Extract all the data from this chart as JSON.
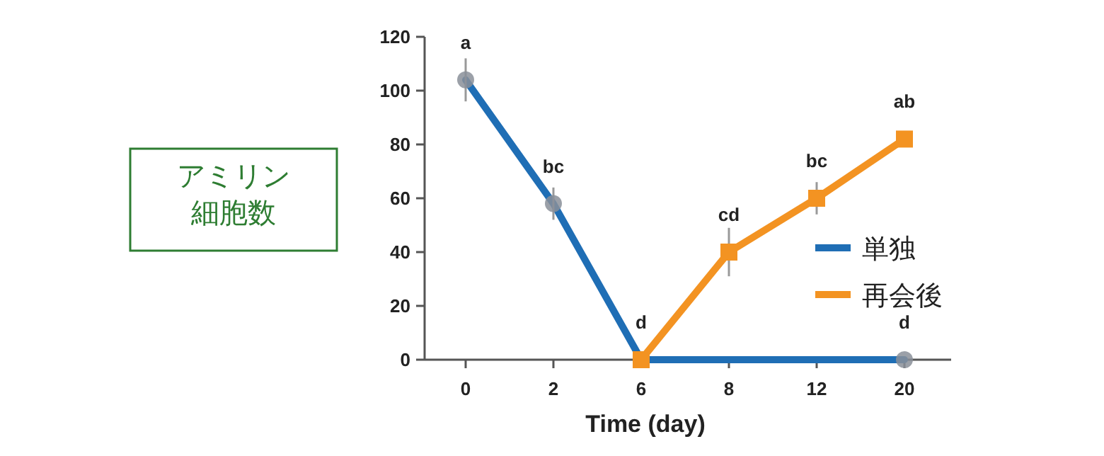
{
  "chart_data": {
    "type": "line",
    "xlabel": "Time (day)",
    "ylabel": "アミリン細胞数",
    "categories": [
      "0",
      "2",
      "6",
      "8",
      "12",
      "20"
    ],
    "series": [
      {
        "name": "単独",
        "color": "#1f6eb5",
        "values": [
          104,
          58,
          0,
          null,
          null,
          0
        ],
        "errors": [
          8,
          6,
          null,
          null,
          null,
          null
        ],
        "marker": "circle"
      },
      {
        "name": "再会後",
        "color": "#f39322",
        "values": [
          null,
          null,
          0,
          40,
          60,
          82
        ],
        "errors": [
          null,
          null,
          null,
          9,
          6,
          null
        ],
        "marker": "square"
      }
    ],
    "ylim": [
      0,
      120
    ],
    "yticks": [
      0,
      20,
      40,
      60,
      80,
      100,
      120
    ],
    "grid": false,
    "legend": "right",
    "line_style": "solid",
    "annotations": [
      {
        "text": "a",
        "x": "0",
        "y": 104
      },
      {
        "text": "bc",
        "x": "2",
        "y": 58
      },
      {
        "text": "d",
        "x": "6",
        "y": 0
      },
      {
        "text": "cd",
        "x": "8",
        "y": 40
      },
      {
        "text": "bc",
        "x": "12",
        "y": 60
      },
      {
        "text": "ab",
        "x": "20",
        "y": 82
      },
      {
        "text": "d",
        "x": "20",
        "y": 0
      }
    ]
  }
}
